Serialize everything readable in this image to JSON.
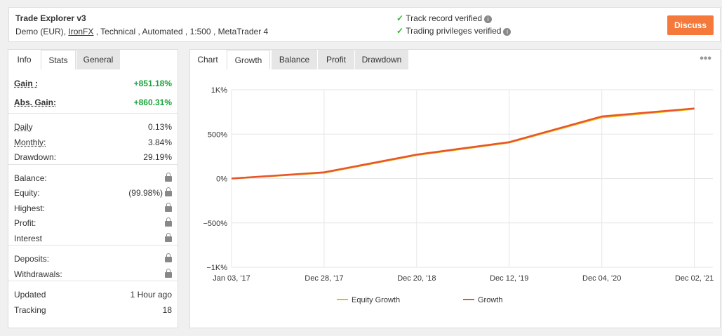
{
  "header": {
    "title": "Trade Explorer v3",
    "account": "Demo (EUR),",
    "broker": "IronFX",
    "details": ", Technical , Automated , 1:500 , MetaTrader 4",
    "verified": [
      "Track record verified",
      "Trading privileges verified"
    ],
    "button": "Discuss"
  },
  "left_tabs": [
    "Info",
    "Stats",
    "General"
  ],
  "stats": [
    [
      {
        "label": "Gain :",
        "value": "+851.18%"
      },
      {
        "label": "Abs. Gain:",
        "value": "+860.31%"
      }
    ],
    [
      {
        "label": "Daily",
        "value": "0.13%"
      },
      {
        "label": "Monthly:",
        "value": "3.84%"
      },
      {
        "label": "Drawdown:",
        "value": "29.19%"
      }
    ],
    [
      {
        "label": "Balance:",
        "locked": true
      },
      {
        "label": "Equity:",
        "value": "(99.98%)",
        "locked": true
      },
      {
        "label": "Highest:",
        "locked": true
      },
      {
        "label": "Profit:",
        "locked": true
      },
      {
        "label": "Interest",
        "locked": true
      }
    ],
    [
      {
        "label": "Deposits:",
        "locked": true
      },
      {
        "label": "Withdrawals:",
        "locked": true
      }
    ],
    [
      {
        "label": "Updated",
        "value": "1 Hour ago"
      },
      {
        "label": "Tracking",
        "value": "18"
      }
    ]
  ],
  "chart_tabs": [
    "Chart",
    "Growth",
    "Balance",
    "Profit",
    "Drawdown"
  ],
  "chart": {
    "type": "line",
    "x": [
      "Jan 03, '17",
      "Dec 28, '17",
      "Dec 20, '18",
      "Dec 12, '19",
      "Dec 04, '20",
      "Dec 02, '21"
    ],
    "series": [
      {
        "name": "Equity Growth",
        "color": "#f5b800",
        "values": [
          0,
          65,
          265,
          405,
          690,
          785
        ]
      },
      {
        "name": "Growth",
        "color": "#e8552a",
        "values": [
          0,
          70,
          270,
          410,
          700,
          790
        ]
      }
    ],
    "ylim": [
      -1000,
      1000
    ],
    "yticks": [
      {
        "value": 1000,
        "label": "1K%"
      },
      {
        "value": 500,
        "label": "500%"
      },
      {
        "value": 0,
        "label": "0%"
      },
      {
        "value": -500,
        "label": "−500%"
      },
      {
        "value": -1000,
        "label": "−1K%"
      }
    ],
    "grid": true
  }
}
